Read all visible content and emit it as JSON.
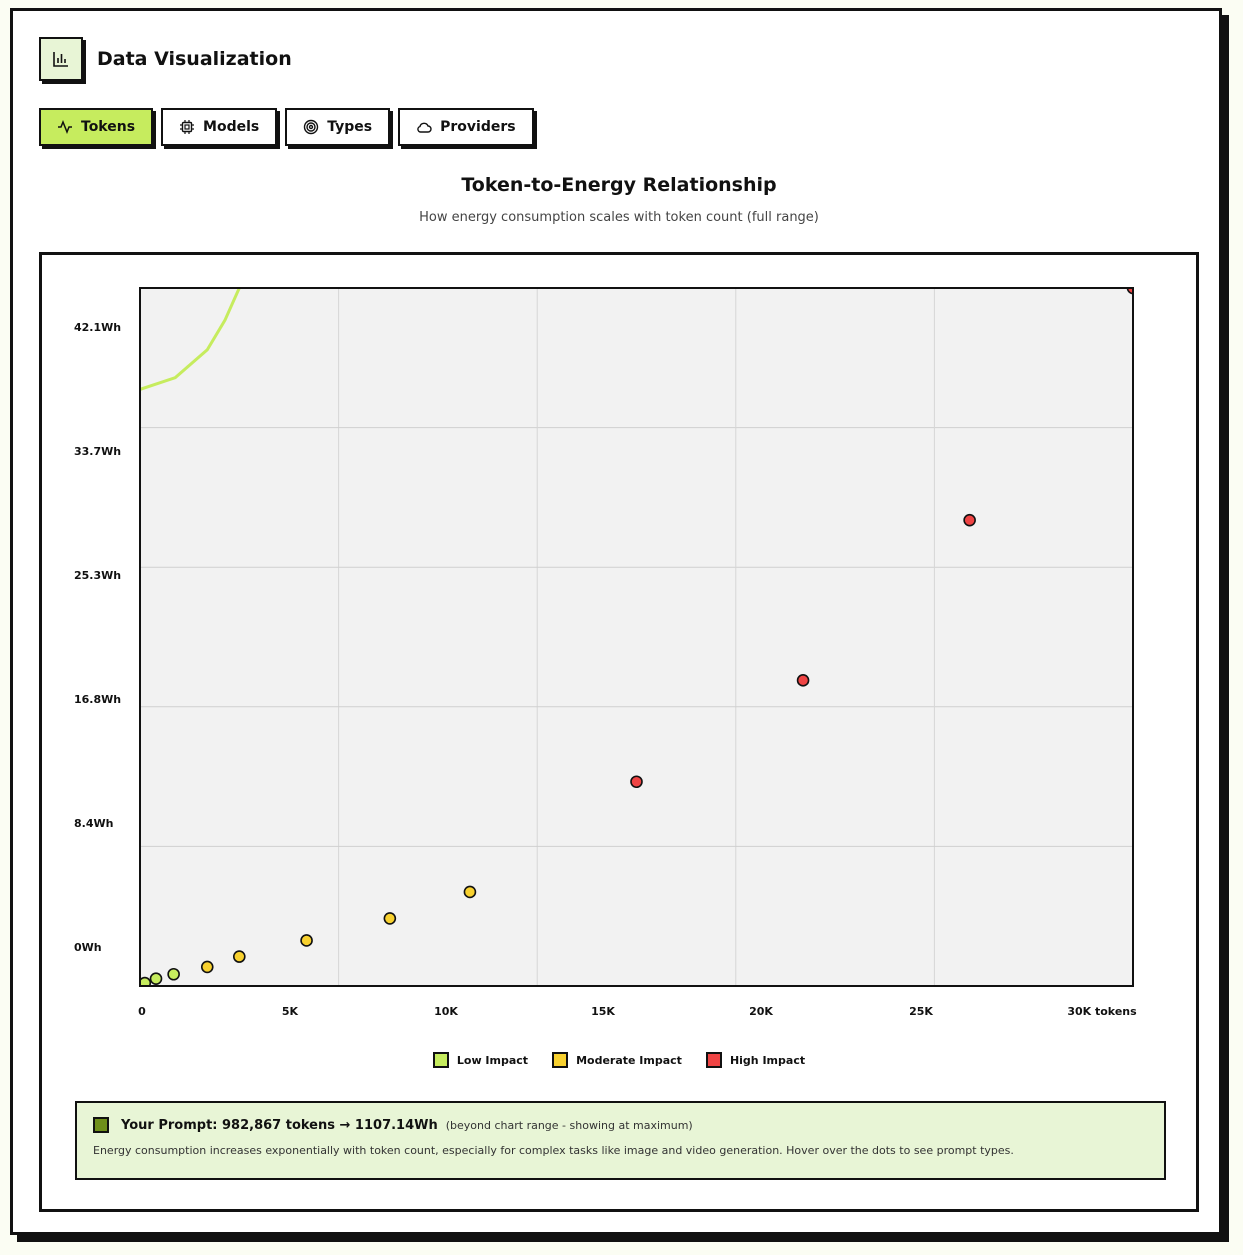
{
  "header": {
    "title": "Data Visualization",
    "icon": "bar-chart-icon"
  },
  "tabs": [
    {
      "label": "Tokens",
      "icon": "activity-icon",
      "active": true
    },
    {
      "label": "Models",
      "icon": "cpu-icon",
      "active": false
    },
    {
      "label": "Types",
      "icon": "target-icon",
      "active": false
    },
    {
      "label": "Providers",
      "icon": "cloud-icon",
      "active": false
    }
  ],
  "chart": {
    "title": "Token-to-Energy Relationship",
    "subtitle": "How energy consumption scales with token count (full range)"
  },
  "chart_data": {
    "type": "scatter",
    "xlim": [
      0,
      31000
    ],
    "ylim": [
      -2.5,
      45
    ],
    "x_ticks": [
      {
        "value": 0,
        "label": "0"
      },
      {
        "value": 5000,
        "label": "5K"
      },
      {
        "value": 10000,
        "label": "10K"
      },
      {
        "value": 15000,
        "label": "15K"
      },
      {
        "value": 20000,
        "label": "20K"
      },
      {
        "value": 25000,
        "label": "25K"
      },
      {
        "value": 30000,
        "label": "30K tokens"
      }
    ],
    "y_ticks": [
      {
        "value": 42.1,
        "label": "42.1Wh"
      },
      {
        "value": 33.7,
        "label": "33.7Wh"
      },
      {
        "value": 25.3,
        "label": "25.3Wh"
      },
      {
        "value": 16.8,
        "label": "16.8Wh"
      },
      {
        "value": 8.4,
        "label": "8.4Wh"
      },
      {
        "value": 0,
        "label": "0Wh"
      }
    ],
    "grid": true,
    "legend_position": "bottom",
    "series": [
      {
        "name": "Low Impact",
        "color": "#c6ec5e",
        "points": [
          [
            150,
            -2.3
          ],
          [
            500,
            -2.0
          ],
          [
            1050,
            -1.7
          ]
        ]
      },
      {
        "name": "Moderate Impact",
        "color": "#f8d12f",
        "points": [
          [
            2100,
            -1.2
          ],
          [
            3100,
            -0.5
          ],
          [
            5200,
            0.6
          ],
          [
            7800,
            2.1
          ],
          [
            10300,
            3.9
          ]
        ]
      },
      {
        "name": "High Impact",
        "color": "#ef4444",
        "points": [
          [
            15500,
            11.4
          ],
          [
            20700,
            18.3
          ],
          [
            25900,
            29.2
          ],
          [
            31000,
            45
          ]
        ]
      }
    ],
    "curve": {
      "color": "#c6ec5e",
      "points": [
        [
          0,
          38.1
        ],
        [
          1100,
          38.9
        ],
        [
          2100,
          40.8
        ],
        [
          2650,
          42.8
        ],
        [
          3100,
          45
        ]
      ]
    }
  },
  "prompt": {
    "main": "Your Prompt: 982,867 tokens → 1107.14Wh",
    "note": "(beyond chart range - showing at maximum)",
    "description": "Energy consumption increases exponentially with token count, especially for complex tasks like image and video generation. Hover over the dots to see prompt types."
  }
}
